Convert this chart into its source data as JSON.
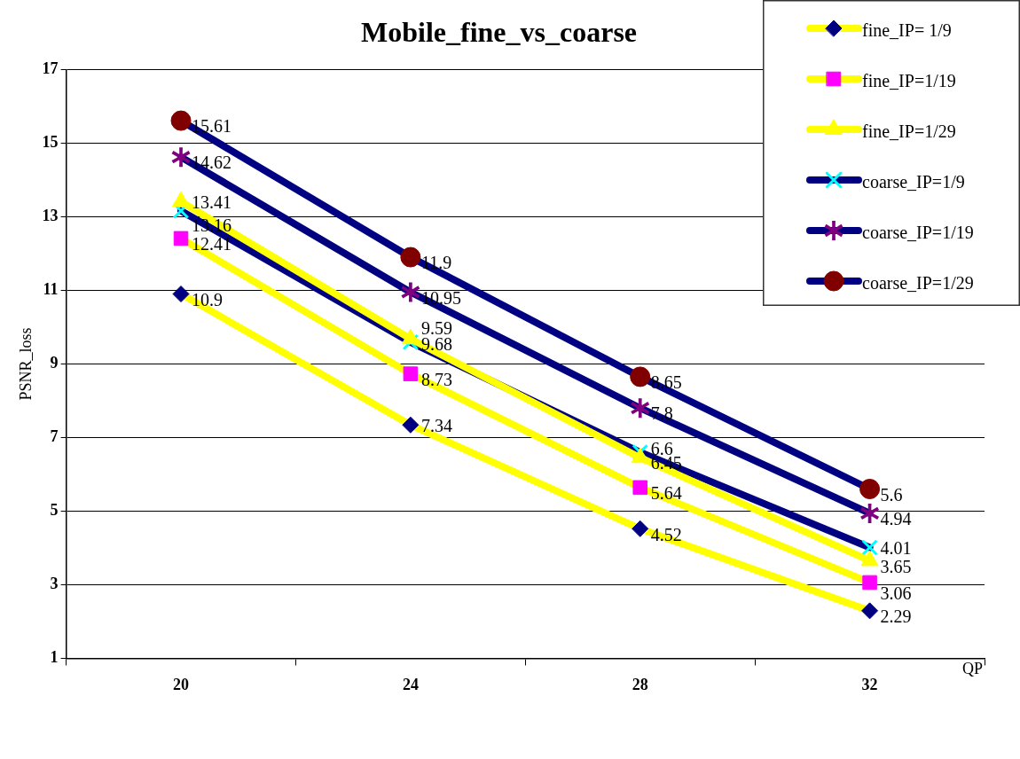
{
  "chart_data": {
    "type": "line",
    "title": "Mobile_fine_vs_coarse",
    "xlabel": "QP",
    "ylabel": "PSNR_loss",
    "categories": [
      "20",
      "24",
      "28",
      "32"
    ],
    "series": [
      {
        "name": "fine_IP= 1/9",
        "color": "#ffff00",
        "colors": [
          "#000080",
          "#000080",
          "#000080",
          "#000080"
        ],
        "marker": "diamond",
        "values": [
          10.9,
          7.34,
          4.52,
          2.29
        ]
      },
      {
        "name": "fine_IP=1/19",
        "color": "#fffe00",
        "colors": [
          "#ff00ff",
          "#ff00ff",
          "#ff00ff",
          "#ff00ff"
        ],
        "marker": "square",
        "values": [
          12.41,
          8.73,
          5.64,
          3.06
        ]
      },
      {
        "name": "fine_IP=1/29",
        "color": "#feff02",
        "colors": [
          "#ffff00",
          "#ffff00",
          "#ffff00",
          "#ffff00"
        ],
        "marker": "triangle",
        "values": [
          13.41,
          9.68,
          6.45,
          3.65
        ]
      },
      {
        "name": "coarse_IP=1/9",
        "color": "#000080",
        "colors": [
          "#00ffff",
          "#00ffff",
          "#00ffff",
          "#00ffff"
        ],
        "marker": "cross",
        "values": [
          13.16,
          9.59,
          6.6,
          4.01
        ]
      },
      {
        "name": "coarse_IP=1/19",
        "color": "#01017f",
        "colors": [
          "#800080",
          "#800080",
          "#800080",
          "#800080"
        ],
        "marker": "star",
        "values": [
          14.62,
          10.95,
          7.8,
          4.94
        ]
      },
      {
        "name": "coarse_IP=1/29",
        "color": "#000082",
        "colors": [
          "#800000",
          "#800000",
          "#800000",
          "#800000"
        ],
        "marker": "circle",
        "values": [
          15.61,
          11.9,
          8.65,
          5.6
        ]
      }
    ],
    "ylim": [
      1,
      17
    ],
    "yticks": [
      1,
      3,
      5,
      7,
      9,
      11,
      13,
      15,
      17
    ],
    "grid": "y",
    "legend": "top right",
    "data_labels": true,
    "line_style": "solid"
  }
}
